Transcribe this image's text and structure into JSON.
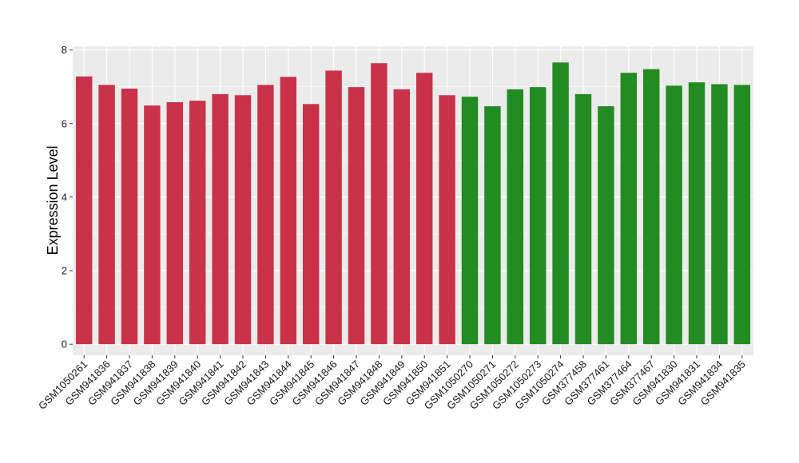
{
  "chart_data": {
    "type": "bar",
    "title": "",
    "xlabel": "",
    "ylabel": "Expression Level",
    "ylim": [
      -0.3,
      8.1
    ],
    "yticks": [
      0,
      2,
      4,
      6,
      8
    ],
    "grid": true,
    "legend": "none",
    "colors": {
      "group1": "#C8334A",
      "group2": "#228B22",
      "panel": "#EBEBEB",
      "grid": "#FFFFFF"
    },
    "categories": [
      "GSM1050261",
      "GSM941836",
      "GSM941837",
      "GSM941838",
      "GSM941839",
      "GSM941840",
      "GSM941841",
      "GSM941842",
      "GSM941843",
      "GSM941844",
      "GSM941845",
      "GSM941846",
      "GSM941847",
      "GSM941848",
      "GSM941849",
      "GSM941850",
      "GSM941851",
      "GSM1050270",
      "GSM1050271",
      "GSM1050272",
      "GSM1050273",
      "GSM1050274",
      "GSM377458",
      "GSM377461",
      "GSM377464",
      "GSM377467",
      "GSM941830",
      "GSM941831",
      "GSM941834",
      "GSM941835"
    ],
    "values": [
      7.28,
      7.05,
      6.95,
      6.49,
      6.58,
      6.62,
      6.8,
      6.77,
      7.05,
      7.27,
      6.53,
      7.44,
      6.99,
      7.64,
      6.93,
      7.38,
      6.77,
      6.73,
      6.47,
      6.93,
      6.99,
      7.66,
      6.8,
      6.47,
      7.38,
      7.48,
      7.03,
      7.12,
      7.07,
      7.05
    ],
    "group": [
      1,
      1,
      1,
      1,
      1,
      1,
      1,
      1,
      1,
      1,
      1,
      1,
      1,
      1,
      1,
      1,
      1,
      2,
      2,
      2,
      2,
      2,
      2,
      2,
      2,
      2,
      2,
      2,
      2,
      2
    ]
  }
}
